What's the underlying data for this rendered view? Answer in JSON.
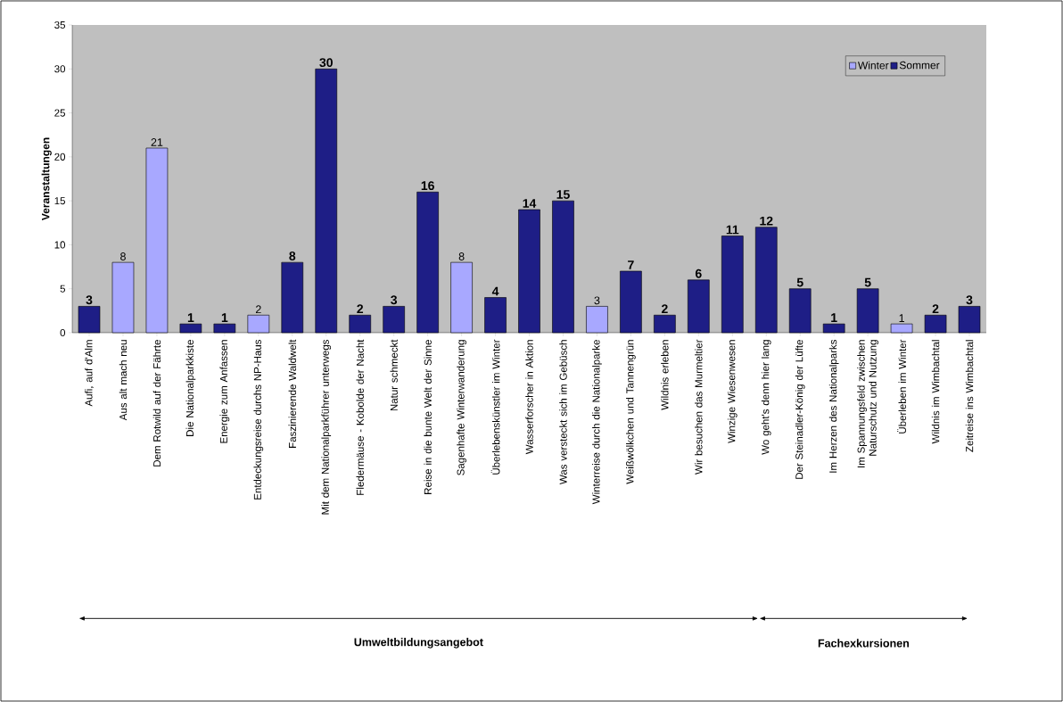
{
  "chart_data": {
    "type": "bar",
    "ylabel": "Veranstaltungen",
    "categories": [
      "Aufi, auf d'Alm",
      "Aus alt mach neu",
      "Dem Rotwild auf der Fährte",
      "Die Nationalparkkiste",
      "Energie zum Anfassen",
      "Entdeckungsreise durchs NP-Haus",
      "Faszinierende Waldwelt",
      "Mit dem Nationalparkführer unterwegs",
      "Fledermäuse - Kobolde der Nacht",
      "Natur schmeckt",
      "Reise in die bunte Welt der Sinne",
      "Sagenhafte Winterwanderung",
      "Überlebenskünstler im Winter",
      "Wasserforscher in Aktion",
      "Was versteckt sich im Gebüsch",
      "Winterreise durch die Nationalparke",
      "Weißwölkchen und Tannengrün",
      "Wildnis erleben",
      "Wir besuchen das Murmeltier",
      "Winzige Wiesenwesen",
      "Wo geht's denn hier lang",
      "Der Steinadler-König der Lüfte",
      "Im Herzen des Nationalparks",
      "Im Spannungsfeld zwischen Naturschutz und Nutzung",
      "Überleben im Winter",
      "Wildnis im Wimbachtal",
      "Zeitreise ins Wimbachtal"
    ],
    "series": [
      {
        "name": "Winter",
        "color": "#a8a8ff",
        "values": [
          null,
          8,
          21,
          null,
          null,
          2,
          null,
          null,
          null,
          null,
          null,
          8,
          null,
          null,
          null,
          3,
          null,
          null,
          null,
          null,
          null,
          null,
          null,
          null,
          1,
          null,
          null
        ]
      },
      {
        "name": "Sommer",
        "color": "#1e1e86",
        "values": [
          3,
          null,
          null,
          1,
          1,
          null,
          8,
          30,
          2,
          3,
          16,
          null,
          4,
          14,
          15,
          null,
          7,
          2,
          6,
          11,
          12,
          5,
          1,
          5,
          null,
          2,
          3
        ]
      }
    ],
    "stacked": true,
    "ylim": [
      0,
      35
    ],
    "yticks": [
      0,
      5,
      10,
      15,
      20,
      25,
      30,
      35
    ],
    "data_labels": true,
    "legend": "top right",
    "grid": false,
    "annotations": [
      "Umweltbildungsangebot",
      "Fachexkursionen"
    ]
  }
}
